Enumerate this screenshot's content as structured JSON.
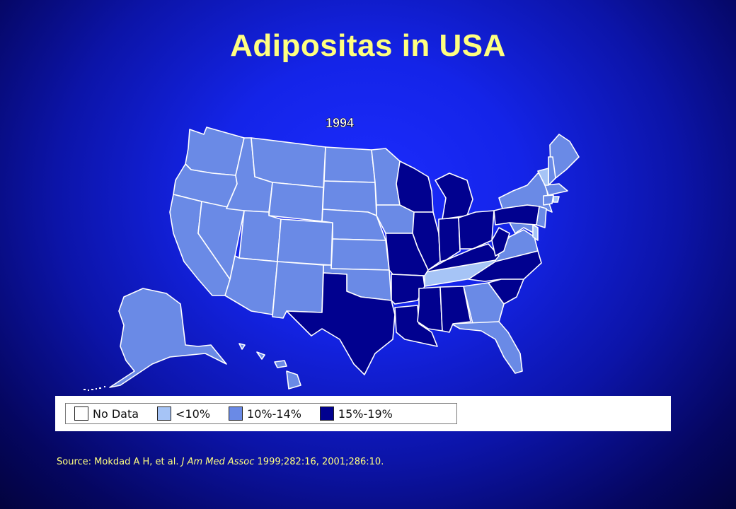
{
  "title": "Adipositas in USA",
  "map": {
    "year": "1994",
    "colors": {
      "no_data": "#ffffff",
      "under_10": "#a6c4f6",
      "p10_14": "#6a8ae6",
      "p15_19": "#01018f"
    }
  },
  "legend": {
    "items": [
      {
        "label": "No Data",
        "color": "#ffffff"
      },
      {
        "label": "<10%",
        "color": "#a6c4f6"
      },
      {
        "label": "10%-14%",
        "color": "#6a8ae6"
      },
      {
        "label": "15%-19%",
        "color": "#01018f"
      }
    ]
  },
  "source": {
    "prefix": "Source: Mokdad A H, et al. ",
    "journal": "J Am Med Assoc",
    "suffix": " 1999;282:16, 2001;286:10."
  }
}
